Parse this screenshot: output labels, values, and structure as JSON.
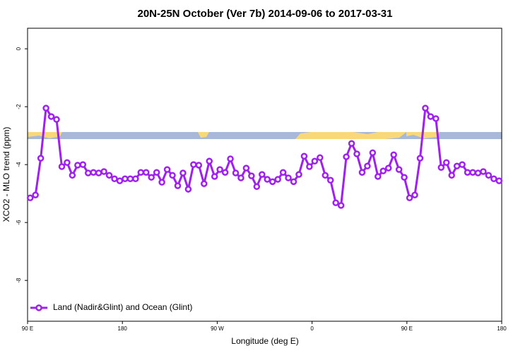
{
  "chart_data": {
    "type": "line",
    "title": "20N-25N October (Ver 7b)   2014-09-06 to 2017-03-31",
    "x_label": "Longitude (deg E)",
    "y_label": "XCO2 - MLO trend (ppm)",
    "xlim": [
      90,
      540
    ],
    "ylim": [
      -9.41,
      0.71
    ],
    "xticks": [
      {
        "value": 90,
        "label": "90 E"
      },
      {
        "value": 180,
        "label": "180"
      },
      {
        "value": 270,
        "label": "90 W"
      },
      {
        "value": 360,
        "label": "0"
      },
      {
        "value": 450,
        "label": "90 E"
      },
      {
        "value": 540,
        "label": "180"
      }
    ],
    "yticks": [
      0,
      -2,
      -4,
      -6,
      -8
    ],
    "legend": "bottom-left",
    "x": [
      92.5,
      97.5,
      102.5,
      107.5,
      112.5,
      117.5,
      122.5,
      127.5,
      132.5,
      137.5,
      142.5,
      147.5,
      152.5,
      157.5,
      162.5,
      167.5,
      172.5,
      177.5,
      182.5,
      187.5,
      192.5,
      197.5,
      202.5,
      207.5,
      212.5,
      217.5,
      222.5,
      227.5,
      232.5,
      237.5,
      242.5,
      247.5,
      252.5,
      257.5,
      262.5,
      267.5,
      272.5,
      277.5,
      282.5,
      287.5,
      292.5,
      297.5,
      302.5,
      307.5,
      312.5,
      317.5,
      322.5,
      327.5,
      332.5,
      337.5,
      342.5,
      347.5,
      352.5,
      357.5,
      362.5,
      367.5,
      372.5,
      377.5,
      382.5,
      387.5,
      392.5,
      397.5,
      402.5,
      407.5,
      412.5,
      417.5,
      422.5,
      427.5,
      432.5,
      437.5,
      442.5,
      447.5,
      452.5,
      457.5,
      462.5,
      467.5,
      472.5,
      477.5,
      482.5,
      487.5,
      492.5,
      497.5,
      502.5,
      507.5,
      512.5,
      517.5,
      522.5,
      527.5,
      532.5,
      537.5
    ],
    "series": [
      {
        "name": "Land (Nadir&Glint) and Ocean (Glint)",
        "color": "#a020f0",
        "values": [
          -5.15,
          -5.05,
          -3.78,
          -2.05,
          -2.34,
          -2.44,
          -4.07,
          -3.93,
          -4.37,
          -4.02,
          -4.0,
          -4.29,
          -4.27,
          -4.29,
          -4.24,
          -4.37,
          -4.49,
          -4.56,
          -4.49,
          -4.49,
          -4.49,
          -4.27,
          -4.27,
          -4.44,
          -4.27,
          -4.61,
          -4.17,
          -4.37,
          -4.73,
          -4.29,
          -4.85,
          -4.0,
          -4.02,
          -4.66,
          -3.88,
          -4.41,
          -4.17,
          -4.27,
          -3.8,
          -4.29,
          -4.46,
          -4.12,
          -4.39,
          -4.76,
          -4.34,
          -4.51,
          -4.59,
          -4.51,
          -4.27,
          -4.46,
          -4.59,
          -4.34,
          -3.71,
          -4.07,
          -3.88,
          -3.76,
          -4.37,
          -4.54,
          -5.32,
          -5.41,
          -3.73,
          -3.27,
          -3.63,
          -4.27,
          -4.05,
          -3.59,
          -4.41,
          -4.22,
          -4.12,
          -3.66,
          -4.17,
          -4.44,
          -5.15,
          -5.05,
          -3.78,
          -2.05,
          -2.34,
          -2.41,
          -4.1,
          -3.93,
          -4.37,
          -4.05,
          -4.0,
          -4.27,
          -4.27,
          -4.29,
          -4.24,
          -4.37,
          -4.49,
          -4.56
        ]
      }
    ]
  }
}
